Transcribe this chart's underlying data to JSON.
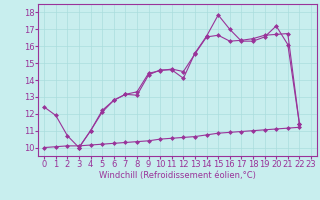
{
  "xlabel": "Windchill (Refroidissement éolien,°C)",
  "background_color": "#c8eeee",
  "grid_color": "#aadddd",
  "line_color": "#993399",
  "xlim": [
    -0.5,
    23.5
  ],
  "ylim": [
    9.5,
    18.5
  ],
  "yticks": [
    10,
    11,
    12,
    13,
    14,
    15,
    16,
    17,
    18
  ],
  "xticks": [
    0,
    1,
    2,
    3,
    4,
    5,
    6,
    7,
    8,
    9,
    10,
    11,
    12,
    13,
    14,
    15,
    16,
    17,
    18,
    19,
    20,
    21,
    22,
    23
  ],
  "line1_x": [
    0,
    1,
    2,
    3,
    4,
    5,
    6,
    7,
    8,
    9,
    10,
    11,
    12,
    13,
    14,
    15,
    16,
    17,
    18,
    19,
    20,
    21,
    22
  ],
  "line1_y": [
    12.4,
    11.9,
    10.7,
    10.0,
    11.0,
    12.1,
    12.8,
    13.15,
    13.1,
    14.3,
    14.6,
    14.6,
    14.1,
    15.6,
    16.6,
    17.85,
    17.0,
    16.3,
    16.3,
    16.55,
    17.2,
    16.1,
    11.4
  ],
  "line2_x": [
    3,
    4,
    5,
    6,
    7,
    8,
    9,
    10,
    11,
    12,
    13,
    14,
    15,
    16,
    17,
    18,
    19,
    20,
    21,
    22
  ],
  "line2_y": [
    10.0,
    11.0,
    12.2,
    12.8,
    13.15,
    13.3,
    14.4,
    14.55,
    14.65,
    14.5,
    15.55,
    16.55,
    16.65,
    16.3,
    16.35,
    16.45,
    16.65,
    16.7,
    16.75,
    11.4
  ],
  "line3_x": [
    0,
    1,
    2,
    3,
    4,
    5,
    6,
    7,
    8,
    9,
    10,
    11,
    12,
    13,
    14,
    15,
    16,
    17,
    18,
    19,
    20,
    21,
    22
  ],
  "line3_y": [
    10.0,
    10.05,
    10.1,
    10.1,
    10.15,
    10.2,
    10.25,
    10.3,
    10.35,
    10.4,
    10.5,
    10.55,
    10.6,
    10.65,
    10.75,
    10.85,
    10.9,
    10.95,
    11.0,
    11.05,
    11.1,
    11.15,
    11.2
  ],
  "tick_fontsize": 6,
  "xlabel_fontsize": 6
}
